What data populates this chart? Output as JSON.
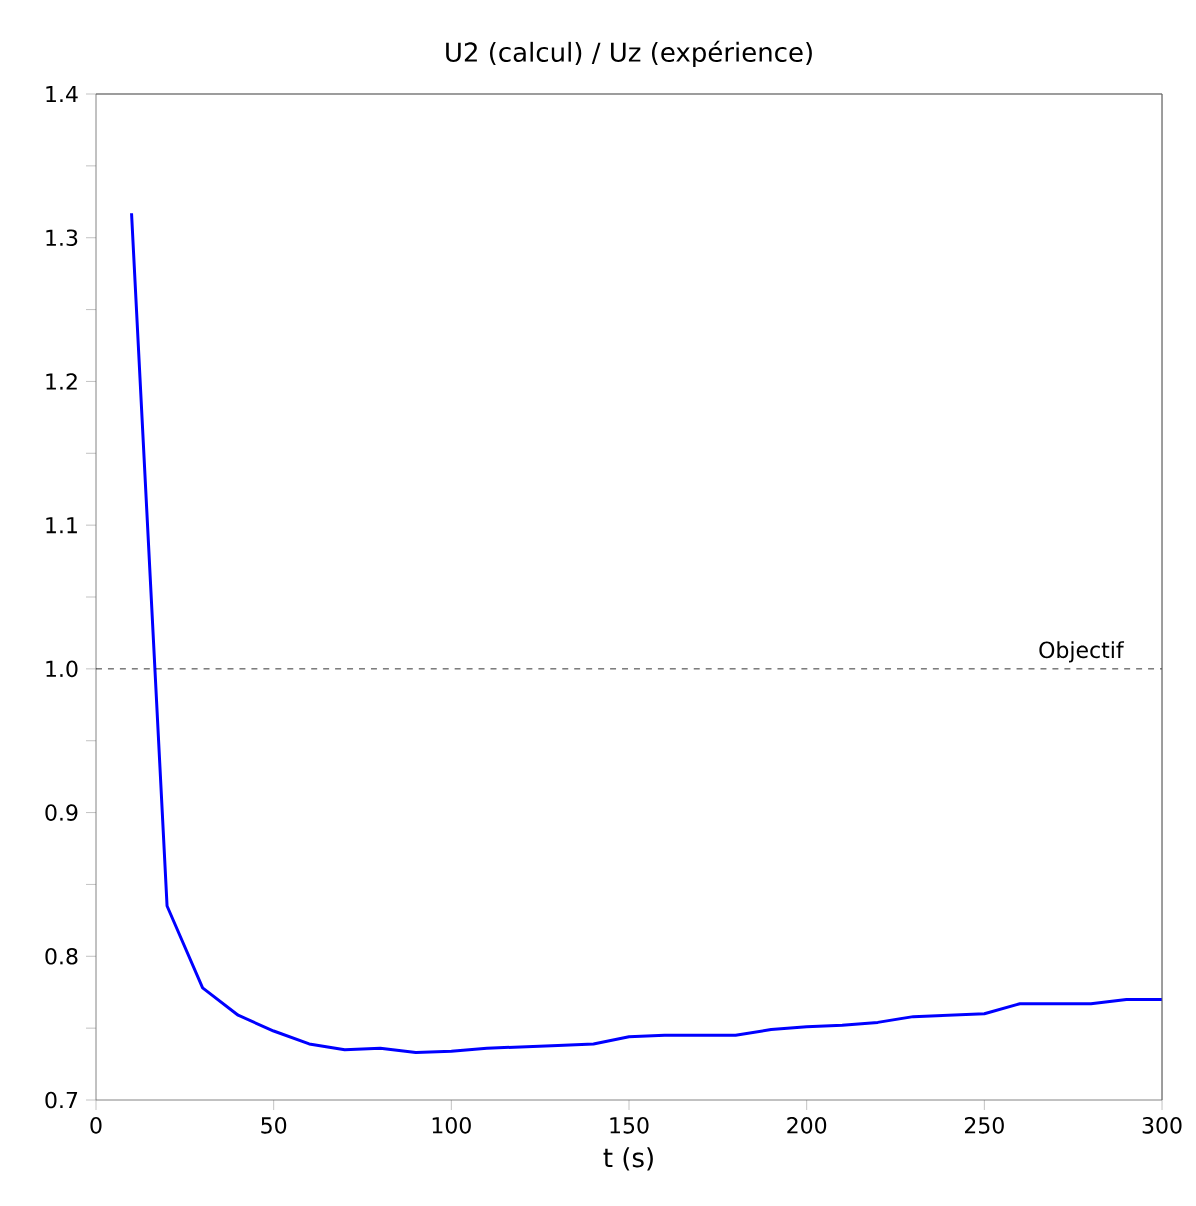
{
  "chart_data": {
    "type": "line",
    "title": "U2 (calcul) / Uz (expérience)",
    "xlabel": "t (s)",
    "x": [
      10,
      20,
      30,
      40,
      50,
      60,
      70,
      80,
      90,
      100,
      110,
      120,
      130,
      140,
      150,
      160,
      170,
      180,
      190,
      200,
      210,
      220,
      230,
      240,
      250,
      260,
      270,
      280,
      290,
      300
    ],
    "series": [
      {
        "color": "#0000ff",
        "values": [
          1.317,
          0.835,
          0.778,
          0.759,
          0.748,
          0.739,
          0.735,
          0.736,
          0.733,
          0.734,
          0.736,
          0.737,
          0.738,
          0.739,
          0.744,
          0.745,
          0.745,
          0.745,
          0.749,
          0.751,
          0.752,
          0.754,
          0.758,
          0.759,
          0.76,
          0.767,
          0.767,
          0.767,
          0.77,
          0.77
        ]
      }
    ],
    "xlim": [
      0,
      300
    ],
    "ylim": [
      0.7,
      1.4
    ],
    "xticks": [
      0,
      50,
      100,
      150,
      200,
      250,
      300
    ],
    "yticks": [
      {
        "value": 0.7,
        "label": "0.7"
      },
      {
        "value": 0.75,
        "label": null
      },
      {
        "value": 0.8,
        "label": "0.8"
      },
      {
        "value": 0.85,
        "label": null
      },
      {
        "value": 0.9,
        "label": "0.9"
      },
      {
        "value": 0.95,
        "label": null
      },
      {
        "value": 1.0,
        "label": "1.0"
      },
      {
        "value": 1.05,
        "label": null
      },
      {
        "value": 1.1,
        "label": "1.1"
      },
      {
        "value": 1.15,
        "label": null
      },
      {
        "value": 1.2,
        "label": "1.2"
      },
      {
        "value": 1.25,
        "label": null
      },
      {
        "value": 1.3,
        "label": "1.3"
      },
      {
        "value": 1.35,
        "label": null
      },
      {
        "value": 1.4,
        "label": "1.4"
      }
    ],
    "ref_lines": [
      {
        "axis": "y",
        "value": 1.0,
        "label": "Objectif",
        "color": "#000000",
        "line_style": "dashed"
      }
    ],
    "grid": false,
    "marker": "none",
    "line_style": "solid"
  }
}
